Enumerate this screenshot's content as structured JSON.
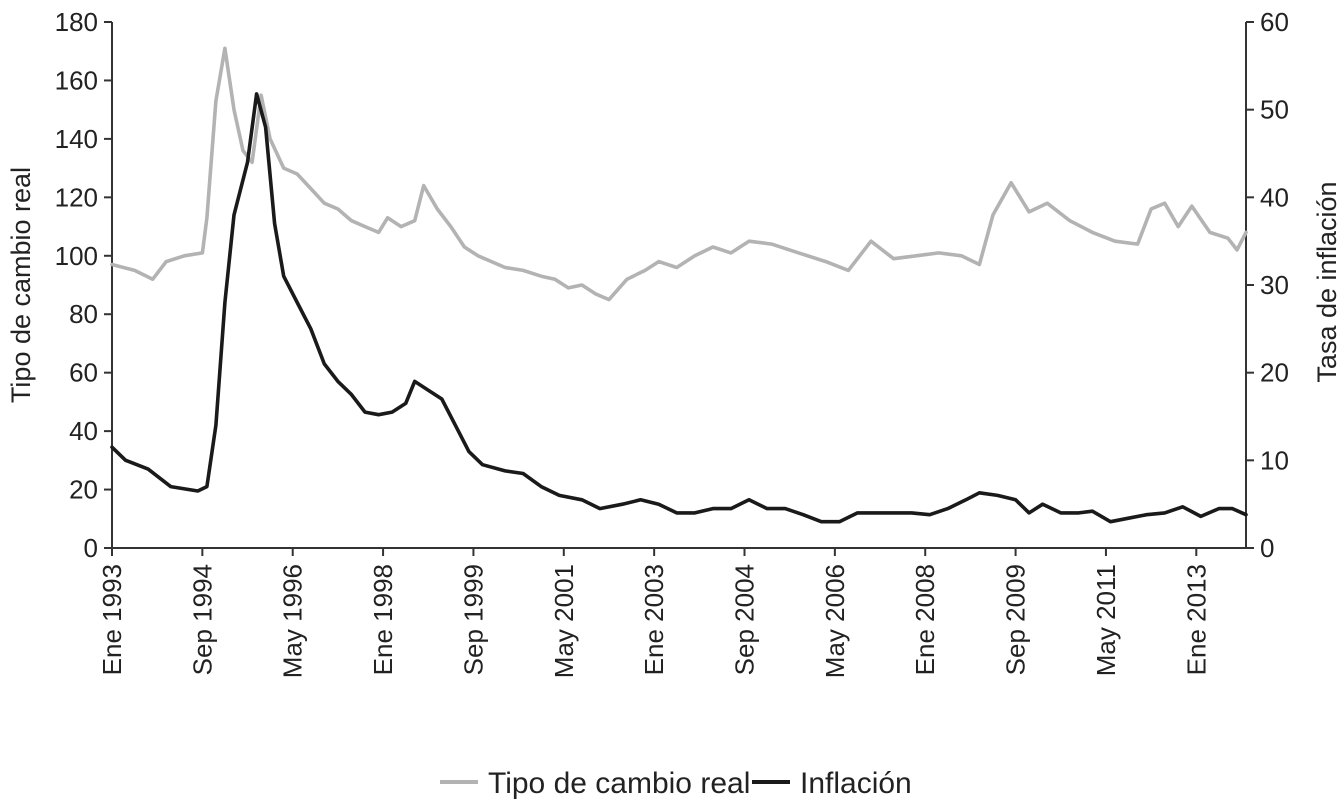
{
  "chart_data": {
    "type": "line",
    "x_start": "Ene 1993",
    "x_end": "Dic 2013",
    "x_tick_labels": [
      "Ene 1993",
      "Sep 1994",
      "May 1996",
      "Ene 1998",
      "Sep 1999",
      "May 2001",
      "Ene 2003",
      "Sep 2004",
      "May 2006",
      "Ene 2008",
      "Sep 2009",
      "May 2011",
      "Ene 2013"
    ],
    "y_left_label": "Tipo de cambio real",
    "y_right_label": "Tasa de inflación",
    "y_left_ticks": [
      "0",
      "20",
      "40",
      "60",
      "80",
      "100",
      "120",
      "140",
      "160",
      "180"
    ],
    "y_right_ticks": [
      "0",
      "10",
      "20",
      "30",
      "40",
      "50",
      "60"
    ],
    "y_left_lim": [
      0,
      180
    ],
    "y_right_lim": [
      0,
      60
    ],
    "grid": false,
    "legend_position": "bottom",
    "series": [
      {
        "name": "Tipo de cambio real",
        "axis": "left",
        "color": "#b3b3b3",
        "points": [
          [
            "1993-01",
            97
          ],
          [
            "1993-06",
            95
          ],
          [
            "1993-10",
            92
          ],
          [
            "1994-01",
            98
          ],
          [
            "1994-05",
            100
          ],
          [
            "1994-09",
            101
          ],
          [
            "1994-10",
            113
          ],
          [
            "1994-12",
            153
          ],
          [
            "1995-02",
            171
          ],
          [
            "1995-04",
            150
          ],
          [
            "1995-06",
            136
          ],
          [
            "1995-08",
            132
          ],
          [
            "1995-10",
            155
          ],
          [
            "1995-12",
            140
          ],
          [
            "1996-03",
            130
          ],
          [
            "1996-06",
            128
          ],
          [
            "1996-09",
            123
          ],
          [
            "1996-12",
            118
          ],
          [
            "1997-03",
            116
          ],
          [
            "1997-06",
            112
          ],
          [
            "1997-09",
            110
          ],
          [
            "1997-12",
            108
          ],
          [
            "1998-02",
            113
          ],
          [
            "1998-05",
            110
          ],
          [
            "1998-08",
            112
          ],
          [
            "1998-10",
            124
          ],
          [
            "1999-01",
            116
          ],
          [
            "1999-04",
            110
          ],
          [
            "1999-07",
            103
          ],
          [
            "1999-10",
            100
          ],
          [
            "2000-01",
            98
          ],
          [
            "2000-04",
            96
          ],
          [
            "2000-08",
            95
          ],
          [
            "2000-12",
            93
          ],
          [
            "2001-03",
            92
          ],
          [
            "2001-06",
            89
          ],
          [
            "2001-09",
            90
          ],
          [
            "2001-12",
            87
          ],
          [
            "2002-03",
            85
          ],
          [
            "2002-07",
            92
          ],
          [
            "2002-11",
            95
          ],
          [
            "2003-02",
            98
          ],
          [
            "2003-06",
            96
          ],
          [
            "2003-10",
            100
          ],
          [
            "2004-02",
            103
          ],
          [
            "2004-06",
            101
          ],
          [
            "2004-10",
            105
          ],
          [
            "2005-03",
            104
          ],
          [
            "2005-09",
            101
          ],
          [
            "2006-03",
            98
          ],
          [
            "2006-08",
            95
          ],
          [
            "2007-01",
            105
          ],
          [
            "2007-06",
            99
          ],
          [
            "2007-11",
            100
          ],
          [
            "2008-04",
            101
          ],
          [
            "2008-09",
            100
          ],
          [
            "2009-01",
            97
          ],
          [
            "2009-04",
            114
          ],
          [
            "2009-08",
            125
          ],
          [
            "2009-12",
            115
          ],
          [
            "2010-04",
            118
          ],
          [
            "2010-09",
            112
          ],
          [
            "2011-02",
            108
          ],
          [
            "2011-07",
            105
          ],
          [
            "2011-12",
            104
          ],
          [
            "2012-03",
            116
          ],
          [
            "2012-06",
            118
          ],
          [
            "2012-09",
            110
          ],
          [
            "2012-12",
            117
          ],
          [
            "2013-04",
            108
          ],
          [
            "2013-08",
            106
          ],
          [
            "2013-10",
            102
          ],
          [
            "2013-12",
            108
          ]
        ]
      },
      {
        "name": "Inflación",
        "axis": "right",
        "color": "#1a1a1a",
        "points": [
          [
            "1993-01",
            11.5
          ],
          [
            "1993-04",
            10
          ],
          [
            "1993-09",
            9
          ],
          [
            "1994-02",
            7
          ],
          [
            "1994-08",
            6.5
          ],
          [
            "1994-10",
            7
          ],
          [
            "1994-12",
            14
          ],
          [
            "1995-02",
            28
          ],
          [
            "1995-04",
            38
          ],
          [
            "1995-07",
            44
          ],
          [
            "1995-09",
            51.8
          ],
          [
            "1995-11",
            48
          ],
          [
            "1996-01",
            37
          ],
          [
            "1996-03",
            31
          ],
          [
            "1996-06",
            28
          ],
          [
            "1996-09",
            25
          ],
          [
            "1996-12",
            21
          ],
          [
            "1997-03",
            19
          ],
          [
            "1997-06",
            17.5
          ],
          [
            "1997-09",
            15.5
          ],
          [
            "1997-12",
            15.2
          ],
          [
            "1998-03",
            15.5
          ],
          [
            "1998-06",
            16.5
          ],
          [
            "1998-08",
            19
          ],
          [
            "1998-11",
            18
          ],
          [
            "1999-02",
            17
          ],
          [
            "1999-05",
            14
          ],
          [
            "1999-08",
            11
          ],
          [
            "1999-11",
            9.5
          ],
          [
            "2000-04",
            8.8
          ],
          [
            "2000-08",
            8.5
          ],
          [
            "2000-12",
            7
          ],
          [
            "2001-04",
            6
          ],
          [
            "2001-09",
            5.5
          ],
          [
            "2002-01",
            4.5
          ],
          [
            "2002-06",
            5
          ],
          [
            "2002-10",
            5.5
          ],
          [
            "2003-02",
            5
          ],
          [
            "2003-06",
            4
          ],
          [
            "2003-10",
            4
          ],
          [
            "2004-02",
            4.5
          ],
          [
            "2004-06",
            4.5
          ],
          [
            "2004-10",
            5.5
          ],
          [
            "2005-02",
            4.5
          ],
          [
            "2005-06",
            4.5
          ],
          [
            "2005-10",
            3.8
          ],
          [
            "2006-02",
            3
          ],
          [
            "2006-06",
            3
          ],
          [
            "2006-10",
            4
          ],
          [
            "2007-02",
            4
          ],
          [
            "2007-06",
            4
          ],
          [
            "2007-10",
            4
          ],
          [
            "2008-02",
            3.8
          ],
          [
            "2008-06",
            4.5
          ],
          [
            "2008-10",
            5.5
          ],
          [
            "2009-01",
            6.3
          ],
          [
            "2009-05",
            6
          ],
          [
            "2009-09",
            5.5
          ],
          [
            "2009-12",
            4
          ],
          [
            "2010-03",
            5
          ],
          [
            "2010-07",
            4
          ],
          [
            "2010-11",
            4
          ],
          [
            "2011-02",
            4.2
          ],
          [
            "2011-06",
            3
          ],
          [
            "2011-10",
            3.4
          ],
          [
            "2012-02",
            3.8
          ],
          [
            "2012-06",
            4
          ],
          [
            "2012-10",
            4.7
          ],
          [
            "2013-02",
            3.6
          ],
          [
            "2013-06",
            4.5
          ],
          [
            "2013-09",
            4.5
          ],
          [
            "2013-12",
            3.8
          ]
        ]
      }
    ]
  }
}
